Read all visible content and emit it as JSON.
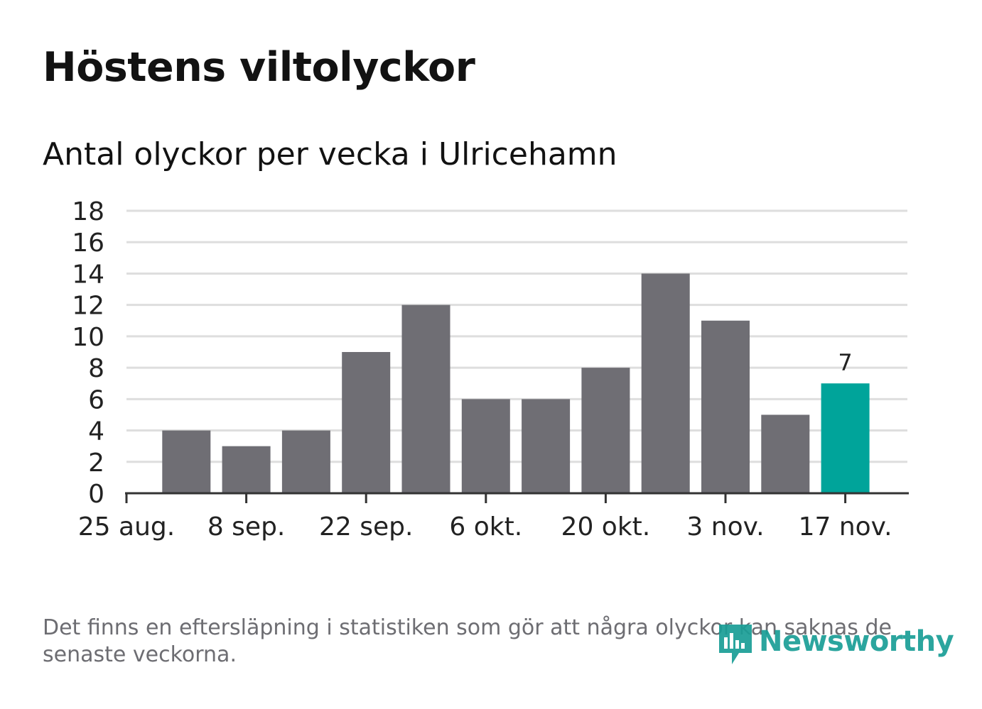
{
  "header": {
    "title": "Höstens viltolyckor",
    "subtitle": "Antal olyckor per vecka i Ulricehamn"
  },
  "footer": {
    "note": "Det finns en eftersläpning i statistiken som gör att några olyckor kan saknas de senaste veckorna.",
    "brand": "Newsworthy"
  },
  "colors": {
    "bar": "#6f6e74",
    "highlight": "#00a49a",
    "grid": "#dedede",
    "axis": "#333333",
    "text": "#222222",
    "brand": "#1a9e96"
  },
  "chart_data": {
    "type": "bar",
    "title": "Antal olyckor per vecka i Ulricehamn",
    "xlabel": "",
    "ylabel": "",
    "ylim": [
      0,
      18
    ],
    "yticks": [
      0,
      2,
      4,
      6,
      8,
      10,
      12,
      14,
      16,
      18
    ],
    "grid": true,
    "values": [
      4,
      3,
      4,
      9,
      12,
      6,
      6,
      8,
      14,
      11,
      5,
      7
    ],
    "highlight_index": 11,
    "value_labels": [
      {
        "index": 11,
        "text": "7"
      }
    ],
    "xticks": [
      {
        "position": 0,
        "label": "25 aug."
      },
      {
        "position": 2,
        "label": "8 sep."
      },
      {
        "position": 4,
        "label": "22 sep."
      },
      {
        "position": 6,
        "label": "6 okt."
      },
      {
        "position": 8,
        "label": "20 okt."
      },
      {
        "position": 10,
        "label": "3 nov."
      },
      {
        "position": 12,
        "label": "17 nov."
      }
    ]
  }
}
